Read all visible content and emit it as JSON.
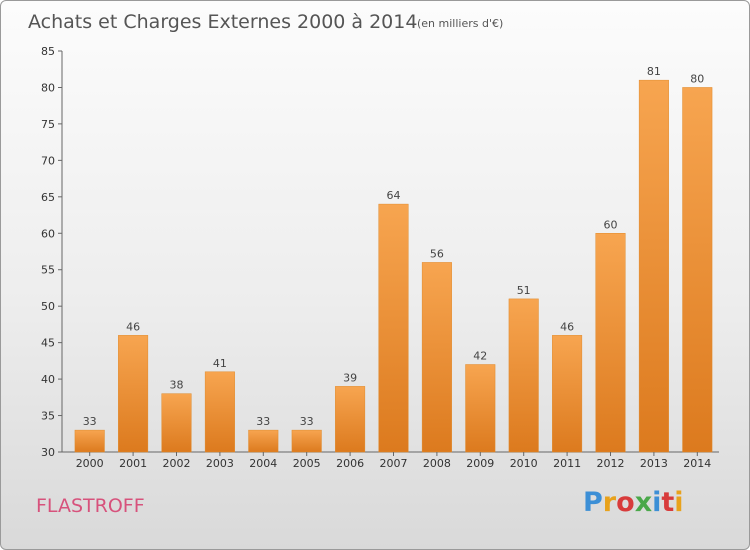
{
  "chart_data": {
    "type": "bar",
    "title": "Achats et Charges Externes 2000 à 2014",
    "subtitle": "(en milliers d'€)",
    "categories": [
      "2000",
      "2001",
      "2002",
      "2003",
      "2004",
      "2005",
      "2006",
      "2007",
      "2008",
      "2009",
      "2010",
      "2011",
      "2012",
      "2013",
      "2014"
    ],
    "values": [
      33,
      46,
      38,
      41,
      33,
      33,
      39,
      64,
      56,
      42,
      51,
      46,
      60,
      81,
      80
    ],
    "ylim": [
      30,
      85
    ],
    "yticks": [
      30,
      35,
      40,
      45,
      50,
      55,
      60,
      65,
      70,
      75,
      80,
      85
    ],
    "grid": false,
    "bar_color": "#f0963a"
  },
  "footer": {
    "commune": "FLASTROFF",
    "logo": "Proxiti",
    "logo_colors": [
      "#3c8fd6",
      "#e8a21c",
      "#d83b3b",
      "#4aa84a",
      "#3c8fd6",
      "#d83b3b",
      "#e8a21c"
    ]
  }
}
